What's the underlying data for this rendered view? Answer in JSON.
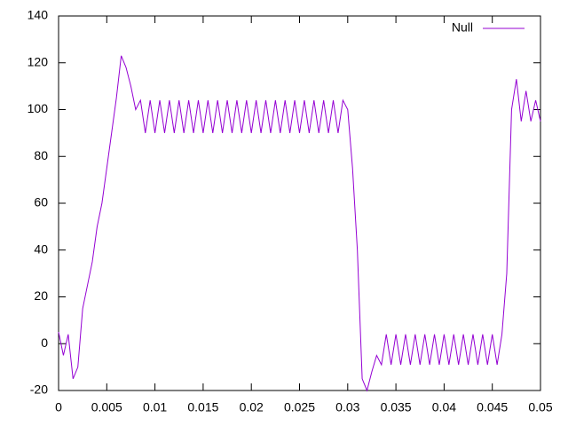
{
  "chart_data": {
    "type": "line",
    "x": [
      0,
      0.0005,
      0.001,
      0.0015,
      0.002,
      0.0025,
      0.003,
      0.0035,
      0.004,
      0.0045,
      0.005,
      0.0055,
      0.006,
      0.0065,
      0.007,
      0.0075,
      0.008,
      0.0085,
      0.009,
      0.0095,
      0.01,
      0.0105,
      0.011,
      0.0115,
      0.012,
      0.0125,
      0.013,
      0.0135,
      0.014,
      0.0145,
      0.015,
      0.0155,
      0.016,
      0.0165,
      0.017,
      0.0175,
      0.018,
      0.0185,
      0.019,
      0.0195,
      0.02,
      0.0205,
      0.021,
      0.0215,
      0.022,
      0.0225,
      0.023,
      0.0235,
      0.024,
      0.0245,
      0.025,
      0.0255,
      0.026,
      0.0265,
      0.027,
      0.0275,
      0.028,
      0.0285,
      0.029,
      0.0295,
      0.03,
      0.0305,
      0.031,
      0.0315,
      0.032,
      0.0325,
      0.033,
      0.0335,
      0.034,
      0.0345,
      0.035,
      0.0355,
      0.036,
      0.0365,
      0.037,
      0.0375,
      0.038,
      0.0385,
      0.039,
      0.0395,
      0.04,
      0.0405,
      0.041,
      0.0415,
      0.042,
      0.0425,
      0.043,
      0.0435,
      0.044,
      0.0445,
      0.045,
      0.0455,
      0.046,
      0.0465,
      0.047,
      0.0475,
      0.048,
      0.0485,
      0.049,
      0.0495,
      0.05
    ],
    "series": [
      {
        "name": "Null",
        "color": "#9400d3",
        "values": [
          5,
          -5,
          4,
          -15,
          -10,
          15,
          25,
          35,
          50,
          60,
          75,
          90,
          105,
          123,
          118,
          110,
          100,
          104,
          90,
          104,
          90,
          104,
          90,
          104,
          90,
          104,
          90,
          104,
          90,
          104,
          90,
          104,
          90,
          104,
          90,
          104,
          90,
          104,
          90,
          104,
          90,
          104,
          90,
          104,
          90,
          104,
          90,
          104,
          90,
          104,
          90,
          104,
          90,
          104,
          90,
          104,
          90,
          104,
          90,
          104,
          100,
          75,
          40,
          -15,
          -20,
          -12,
          -5,
          -9,
          4,
          -9,
          4,
          -9,
          4,
          -9,
          4,
          -9,
          4,
          -9,
          4,
          -9,
          4,
          -9,
          4,
          -9,
          4,
          -9,
          4,
          -9,
          4,
          -9,
          4,
          -9,
          4,
          30,
          100,
          113,
          95,
          108,
          95,
          104,
          95
        ]
      }
    ],
    "xlim": [
      0,
      0.05
    ],
    "xticks": [
      0,
      0.005,
      0.01,
      0.015,
      0.02,
      0.025,
      0.03,
      0.035,
      0.04,
      0.045,
      0.05
    ],
    "ylim": [
      -20,
      140
    ],
    "yticks": [
      -20,
      0,
      20,
      40,
      60,
      80,
      100,
      120,
      140
    ],
    "legend": "top-right"
  }
}
